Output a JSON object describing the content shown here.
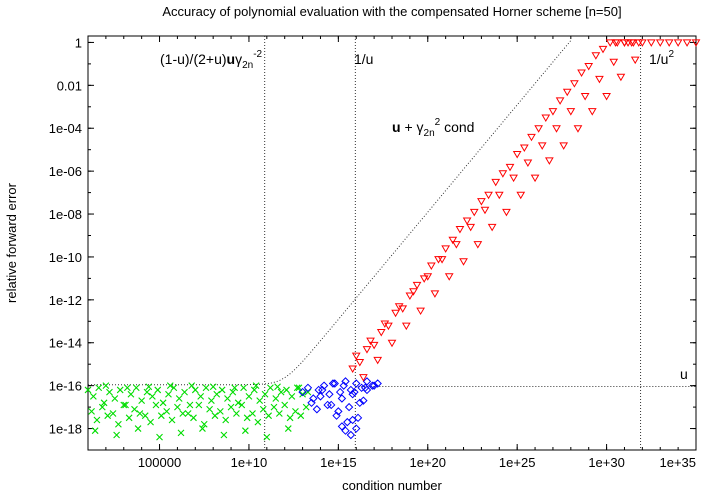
{
  "chart_data": {
    "type": "scatter",
    "title": "Accuracy of polynomial evaluation with the compensated Horner scheme [n=50]",
    "xlabel": "condition number",
    "ylabel": "relative forward error",
    "xscale": "log",
    "yscale": "log",
    "xlim_log10": [
      1,
      35
    ],
    "ylim_log10": [
      -19,
      0.3
    ],
    "x_ticks": [
      {
        "log10": 5,
        "label": "100000"
      },
      {
        "log10": 10,
        "label": "1e+10"
      },
      {
        "log10": 15,
        "label": "1e+15"
      },
      {
        "log10": 20,
        "label": "1e+20"
      },
      {
        "log10": 25,
        "label": "1e+25"
      },
      {
        "log10": 30,
        "label": "1e+30"
      },
      {
        "log10": 35,
        "label": "1e+35"
      }
    ],
    "y_ticks": [
      {
        "log10": 0,
        "label": "1"
      },
      {
        "log10": -2,
        "label": "0.01"
      },
      {
        "log10": -4,
        "label": "1e-04"
      },
      {
        "log10": -6,
        "label": "1e-06"
      },
      {
        "log10": -8,
        "label": "1e-08"
      },
      {
        "log10": -10,
        "label": "1e-10"
      },
      {
        "log10": -12,
        "label": "1e-12"
      },
      {
        "log10": -14,
        "label": "1e-14"
      },
      {
        "log10": -16,
        "label": "1e-16"
      },
      {
        "log10": -18,
        "label": "1e-18"
      }
    ],
    "annotations": {
      "a1_prefix": "(1-u)/(2+u)",
      "a1_bold": "u",
      "a1_gamma": "γ",
      "a1_sub": "2n",
      "a1_sup": "-2",
      "a2": "1/u",
      "a3_bold": "u",
      "a3_plus": " + γ",
      "a3_sub": "2n",
      "a3_sup": "2",
      "a3_cond": " cond",
      "a4": "1/u",
      "a4_sup": "2",
      "a5": "u"
    },
    "reference_lines": {
      "vertical_log10": [
        10.88,
        15.95,
        31.9
      ],
      "horizontal_log10": -16.04,
      "bound_curve": "u + gamma_2n^2 * cond (dotted)"
    },
    "series": [
      {
        "color": "#00dd00",
        "marker": "x",
        "x_log10": [
          1.0,
          1.3,
          1.6,
          1.9,
          2.2,
          2.5,
          2.8,
          3.1,
          3.4,
          3.7,
          4.0,
          4.3,
          4.6,
          4.9,
          5.2,
          5.5,
          5.8,
          6.1,
          6.4,
          6.7,
          7.0,
          7.3,
          7.6,
          7.9,
          8.2,
          8.5,
          8.8,
          9.1,
          9.4,
          9.7,
          10.0,
          10.3,
          10.6,
          10.9,
          11.2,
          11.5,
          11.8,
          12.1,
          12.4,
          12.7,
          13.0,
          13.3,
          1.2,
          1.8,
          2.4,
          3.0,
          3.6,
          4.2,
          4.8,
          5.4,
          6.0,
          6.6,
          7.2,
          7.8,
          8.4,
          9.0,
          9.6,
          10.2,
          10.8,
          11.4,
          12.0,
          12.6,
          13.2,
          1.5,
          2.1,
          2.7,
          3.3,
          3.9,
          4.5,
          5.1,
          5.7,
          6.3,
          6.9,
          7.5,
          8.1,
          8.7,
          9.3,
          9.9,
          10.5,
          11.1,
          11.7,
          12.3,
          12.9,
          1.4,
          2.6,
          3.8,
          5.0,
          6.2,
          7.4,
          8.6,
          9.8,
          11.0,
          12.2,
          2.0,
          4.4,
          6.8,
          9.2,
          11.6,
          3.2,
          5.6,
          8.0,
          10.4,
          12.8
        ],
        "y_log10": [
          -16.2,
          -16.5,
          -16.1,
          -16.8,
          -16.3,
          -16.6,
          -16.2,
          -16.9,
          -16.4,
          -16.1,
          -16.7,
          -16.3,
          -16.5,
          -16.2,
          -16.8,
          -16.4,
          -16.1,
          -16.6,
          -16.3,
          -16.9,
          -16.2,
          -16.5,
          -16.1,
          -16.7,
          -16.4,
          -16.2,
          -16.6,
          -16.3,
          -16.8,
          -16.1,
          -16.5,
          -16.2,
          -16.7,
          -16.4,
          -16.1,
          -16.6,
          -16.3,
          -16.2,
          -16.5,
          -16.1,
          -16.4,
          -16.3,
          -17.2,
          -17.0,
          -17.3,
          -16.9,
          -17.1,
          -17.4,
          -16.9,
          -17.2,
          -17.0,
          -17.3,
          -16.9,
          -17.1,
          -17.2,
          -17.0,
          -16.9,
          -17.3,
          -17.1,
          -17.0,
          -16.9,
          -17.2,
          -17.0,
          -17.6,
          -17.4,
          -17.8,
          -17.5,
          -17.3,
          -17.7,
          -17.4,
          -17.6,
          -17.3,
          -17.5,
          -17.8,
          -17.4,
          -17.6,
          -17.3,
          -17.5,
          -17.7,
          -17.4,
          -17.3,
          -17.5,
          -17.4,
          -18.1,
          -18.3,
          -18.0,
          -18.4,
          -18.2,
          -18.0,
          -18.3,
          -18.1,
          -18.4,
          -18.0,
          -16.0,
          -16.05,
          -16.0,
          -16.1,
          -16.05,
          -16.1,
          -16.0,
          -16.05,
          -16.0,
          -16.1
        ]
      },
      {
        "color": "#0000ff",
        "marker": "diamond",
        "x_log10": [
          13.0,
          13.3,
          13.6,
          13.9,
          14.2,
          14.5,
          14.8,
          15.1,
          15.4,
          15.7,
          16.0,
          16.3,
          16.6,
          16.9,
          17.2,
          13.5,
          14.0,
          14.6,
          15.2,
          15.8,
          16.4,
          13.8,
          14.4,
          15.0,
          15.6,
          16.2,
          14.1,
          14.7,
          15.3,
          15.9,
          16.5,
          14.9,
          15.5,
          16.1,
          15.4,
          15.7,
          16.0,
          15.2,
          15.8,
          16.6,
          17.0
        ],
        "y_log10": [
          -16.3,
          -16.1,
          -16.6,
          -16.2,
          -16.0,
          -16.4,
          -15.9,
          -16.3,
          -15.8,
          -16.2,
          -15.9,
          -16.1,
          -15.8,
          -16.0,
          -15.9,
          -16.8,
          -16.5,
          -16.9,
          -16.6,
          -16.4,
          -16.7,
          -17.1,
          -16.9,
          -17.2,
          -17.0,
          -16.8,
          -16.2,
          -15.9,
          -16.0,
          -16.3,
          -16.1,
          -17.4,
          -17.7,
          -17.5,
          -18.1,
          -18.3,
          -18.0,
          -17.9,
          -17.6,
          -16.2,
          -16.0
        ]
      },
      {
        "color": "#ff0000",
        "marker": "triangle-down",
        "x_log10": [
          15.8,
          16.2,
          16.6,
          17.0,
          17.4,
          17.8,
          18.2,
          18.6,
          19.0,
          19.4,
          19.8,
          20.2,
          20.6,
          21.0,
          21.4,
          21.8,
          22.2,
          22.6,
          23.0,
          23.4,
          23.8,
          24.2,
          24.6,
          25.0,
          25.4,
          25.8,
          26.2,
          26.6,
          27.0,
          27.4,
          27.8,
          28.2,
          28.6,
          29.0,
          29.4,
          29.8,
          30.2,
          30.6,
          31.0,
          31.4,
          31.8,
          16.0,
          16.8,
          17.6,
          18.4,
          19.2,
          20.0,
          20.8,
          21.6,
          22.4,
          23.2,
          24.0,
          24.8,
          25.6,
          26.4,
          27.2,
          28.0,
          28.8,
          29.6,
          30.4,
          31.2,
          16.4,
          17.2,
          18.0,
          18.8,
          19.6,
          20.4,
          21.2,
          22.0,
          22.8,
          23.6,
          24.4,
          25.2,
          26.0,
          26.8,
          27.6,
          28.4,
          29.2,
          30.0,
          30.8,
          31.6,
          30.5,
          31.0,
          31.5,
          32.0,
          32.5,
          33.0,
          33.5,
          34.0,
          34.5,
          35.0
        ],
        "y_log10": [
          -15.2,
          -14.9,
          -14.3,
          -14.1,
          -13.5,
          -13.2,
          -12.6,
          -12.4,
          -11.8,
          -11.3,
          -11.0,
          -10.4,
          -10.1,
          -9.6,
          -9.2,
          -8.7,
          -8.3,
          -7.9,
          -7.4,
          -7.1,
          -6.5,
          -6.1,
          -5.8,
          -5.2,
          -4.9,
          -4.4,
          -4.0,
          -3.5,
          -3.2,
          -2.7,
          -2.3,
          -1.9,
          -1.4,
          -1.1,
          -0.6,
          -0.3,
          0.0,
          0.0,
          0.0,
          0.0,
          0.0,
          -14.6,
          -13.9,
          -13.1,
          -12.3,
          -11.6,
          -10.9,
          -10.1,
          -9.4,
          -8.6,
          -7.8,
          -7.1,
          -6.3,
          -5.6,
          -4.8,
          -4.0,
          -3.2,
          -2.5,
          -1.7,
          -0.9,
          0.0,
          -15.6,
          -14.8,
          -14.0,
          -13.2,
          -12.5,
          -11.7,
          -10.9,
          -10.2,
          -9.4,
          -8.6,
          -7.9,
          -7.1,
          -6.3,
          -5.5,
          -4.8,
          -4.0,
          -3.2,
          -2.5,
          -1.6,
          -0.8,
          0.0,
          0.0,
          0.0,
          0.0,
          0.0,
          0.0,
          0.0,
          0.0,
          0.0,
          0.0
        ]
      }
    ]
  }
}
